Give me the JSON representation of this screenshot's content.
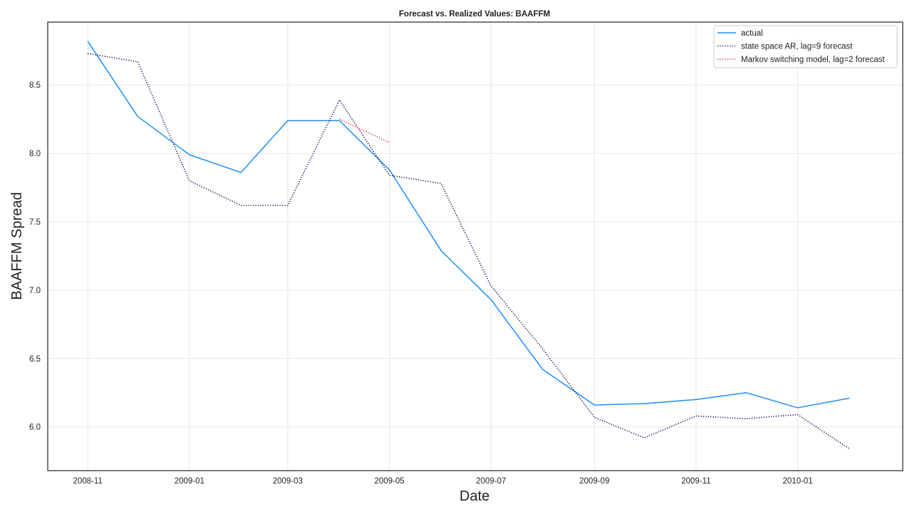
{
  "chart_data": {
    "type": "line",
    "title": "Forecast vs. Realized Values: BAAFFM",
    "xlabel": "Date",
    "ylabel": "BAAFFM Spread",
    "x_tick_labels": [
      "2008-11",
      "2009-01",
      "2009-03",
      "2009-05",
      "2009-07",
      "2009-09",
      "2009-11",
      "2010-01"
    ],
    "y_ticks": [
      "6.0",
      "6.5",
      "7.0",
      "7.5",
      "8.0",
      "8.5"
    ],
    "x_range": [
      "2008-10-08",
      "2010-03-05"
    ],
    "ylim": [
      5.68,
      8.96
    ],
    "grid": true,
    "legend_position": "top-right",
    "series": [
      {
        "name": "actual",
        "color": "#1f8ef1",
        "style": "solid",
        "x": [
          "2008-11-01",
          "2008-12-01",
          "2009-01-01",
          "2009-02-01",
          "2009-03-01",
          "2009-04-01",
          "2009-05-01",
          "2009-06-01",
          "2009-07-01",
          "2009-08-01",
          "2009-09-01",
          "2009-10-01",
          "2009-11-01",
          "2009-12-01",
          "2010-01-01",
          "2010-02-01"
        ],
        "values": [
          8.82,
          8.27,
          7.99,
          7.86,
          8.24,
          8.24,
          7.88,
          7.29,
          6.93,
          6.42,
          6.16,
          6.17,
          6.2,
          6.25,
          6.14,
          6.21
        ]
      },
      {
        "name": "state space AR, lag=9 forecast",
        "color": "#0b0b55",
        "style": "dotted",
        "x": [
          "2008-11-01",
          "2008-12-01",
          "2009-01-01",
          "2009-02-01",
          "2009-03-01",
          "2009-04-01",
          "2009-05-01",
          "2009-06-01",
          "2009-07-01",
          "2009-08-01",
          "2009-09-01",
          "2009-10-01",
          "2009-11-01",
          "2009-12-01",
          "2010-01-01",
          "2010-02-01"
        ],
        "values": [
          8.73,
          8.67,
          7.8,
          7.62,
          7.62,
          8.39,
          7.84,
          7.78,
          7.03,
          6.57,
          6.07,
          5.92,
          6.08,
          6.06,
          6.09,
          5.84
        ]
      },
      {
        "name": "Markov switching model, lag=2 forecast",
        "color": "#e0284a",
        "style": "dotted",
        "x": [
          "2009-04-01",
          "2009-05-01"
        ],
        "values": [
          8.25,
          8.08
        ]
      }
    ]
  }
}
